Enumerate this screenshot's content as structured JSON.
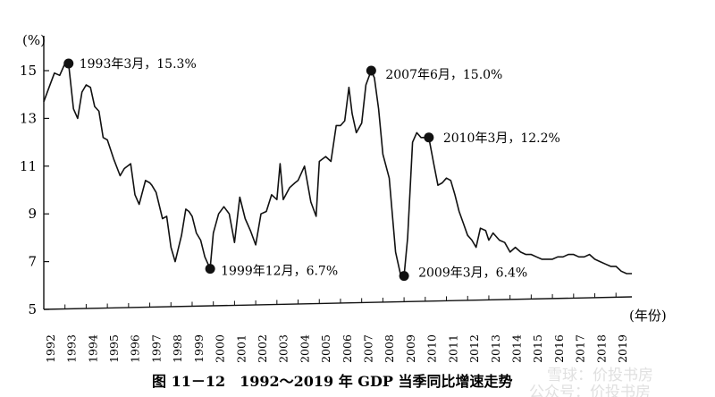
{
  "chart_data": {
    "type": "line",
    "title": "图 11－12　1992～2019 年 GDP 当季同比增速走势",
    "ylabel": "(%)",
    "xlabel": "(年份)",
    "ylim": [
      5,
      16
    ],
    "xlim": [
      1992.0,
      2019.75
    ],
    "yticks": [
      5,
      7,
      9,
      11,
      13,
      15
    ],
    "xticks": [
      "1992",
      "1993",
      "1994",
      "1995",
      "1996",
      "1997",
      "1998",
      "1999",
      "2000",
      "2001",
      "2002",
      "2003",
      "2004",
      "2005",
      "2006",
      "2007",
      "2008",
      "2009",
      "2010",
      "2011",
      "2012",
      "2013",
      "2014",
      "2015",
      "2016",
      "2017",
      "2018",
      "2019"
    ],
    "series": [
      {
        "x": [
          1992.0,
          1992.25,
          1992.5,
          1992.75,
          1993.0,
          1993.17,
          1993.4,
          1993.6,
          1993.8,
          1994.0,
          1994.2,
          1994.4,
          1994.6,
          1994.8,
          1995.0,
          1995.3,
          1995.6,
          1995.8,
          1996.1,
          1996.3,
          1996.5,
          1996.8,
          1997.0,
          1997.1,
          1997.3,
          1997.6,
          1997.8,
          1998.0,
          1998.2,
          1998.5,
          1998.7,
          1998.85,
          1999.0,
          1999.2,
          1999.4,
          1999.6,
          1999.85,
          2000.0,
          2000.25,
          2000.5,
          2000.75,
          2001.0,
          2001.25,
          2001.5,
          2001.75,
          2002.0,
          2002.25,
          2002.5,
          2002.75,
          2003.0,
          2003.15,
          2003.3,
          2003.6,
          2003.85,
          2004.0,
          2004.3,
          2004.6,
          2004.85,
          2005.0,
          2005.3,
          2005.55,
          2005.8,
          2006.0,
          2006.2,
          2006.4,
          2006.55,
          2006.75,
          2007.0,
          2007.2,
          2007.45,
          2007.6,
          2007.8,
          2008.0,
          2008.3,
          2008.6,
          2008.85,
          2009.0,
          2009.17,
          2009.4,
          2009.6,
          2009.8,
          2010.0,
          2010.17,
          2010.4,
          2010.6,
          2010.8,
          2011.0,
          2011.2,
          2011.4,
          2011.6,
          2011.8,
          2012.0,
          2012.2,
          2012.4,
          2012.6,
          2012.85,
          2013.0,
          2013.2,
          2013.5,
          2013.75,
          2014.0,
          2014.25,
          2014.5,
          2014.75,
          2015.0,
          2015.25,
          2015.5,
          2015.75,
          2016.0,
          2016.25,
          2016.5,
          2016.75,
          2017.0,
          2017.25,
          2017.5,
          2017.75,
          2018.0,
          2018.25,
          2018.5,
          2018.75,
          2019.0,
          2019.25,
          2019.5,
          2019.75
        ],
        "y": [
          13.7,
          14.3,
          14.9,
          14.8,
          15.3,
          15.3,
          13.4,
          13.0,
          14.1,
          14.4,
          14.3,
          13.5,
          13.3,
          12.2,
          12.1,
          11.3,
          10.6,
          10.9,
          11.1,
          9.8,
          9.4,
          10.4,
          10.3,
          10.2,
          9.9,
          8.8,
          8.9,
          7.6,
          7.0,
          8.1,
          9.2,
          9.1,
          8.9,
          8.2,
          7.9,
          7.2,
          6.7,
          8.2,
          9.0,
          9.3,
          9.0,
          7.8,
          9.7,
          8.8,
          8.3,
          7.7,
          9.0,
          9.1,
          9.8,
          9.6,
          11.1,
          9.6,
          10.1,
          10.3,
          10.4,
          11.0,
          9.5,
          8.9,
          11.2,
          11.4,
          11.2,
          12.7,
          12.7,
          12.9,
          14.3,
          13.2,
          12.4,
          12.8,
          14.4,
          15.0,
          14.7,
          13.4,
          11.5,
          10.5,
          7.4,
          6.4,
          6.4,
          8.0,
          12.0,
          12.4,
          12.2,
          12.2,
          12.2,
          11.1,
          10.2,
          10.3,
          10.5,
          10.4,
          9.8,
          9.1,
          8.6,
          8.1,
          7.9,
          7.6,
          8.4,
          8.3,
          7.9,
          8.2,
          7.9,
          7.8,
          7.4,
          7.6,
          7.4,
          7.3,
          7.3,
          7.2,
          7.1,
          7.1,
          7.1,
          7.2,
          7.2,
          7.3,
          7.3,
          7.2,
          7.2,
          7.3,
          7.1,
          7.0,
          6.9,
          6.8,
          6.8,
          6.6,
          6.5,
          6.5
        ]
      }
    ],
    "annotations": [
      {
        "x": 1993.17,
        "y": 15.3,
        "label": "1993年3月，15.3%"
      },
      {
        "x": 1999.85,
        "y": 6.7,
        "label": "1999年12月，6.7%"
      },
      {
        "x": 2007.45,
        "y": 15.0,
        "label": "2007年6月，15.0%"
      },
      {
        "x": 2009.0,
        "y": 6.4,
        "label": "2009年3月，6.4%"
      },
      {
        "x": 2010.17,
        "y": 12.2,
        "label": "2010年3月，12.2%"
      }
    ]
  },
  "watermark": {
    "line1": "雪球：价投书房",
    "line2": "公众号：价投书房"
  }
}
